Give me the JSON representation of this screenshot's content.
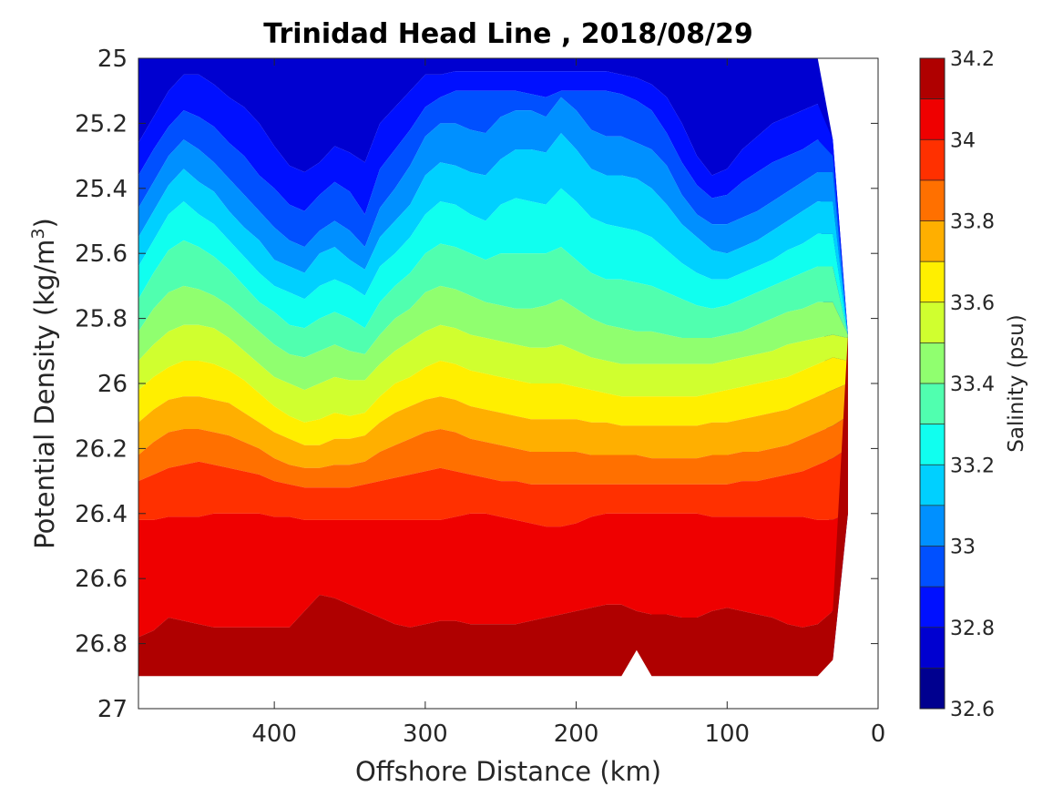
{
  "chart_data": {
    "type": "filled-contour",
    "title": "Trinidad Head Line , 2018/08/29",
    "xlabel": "Offshore Distance (km)",
    "ylabel": "Potential Density (kg/m",
    "ylabel_sup": "3",
    "ylabel_close": ")",
    "xlim": [
      490,
      0
    ],
    "ylim": [
      25,
      27
    ],
    "y_reversed": true,
    "xticks": [
      400,
      300,
      200,
      100,
      0
    ],
    "xtick_labels": [
      "400",
      "300",
      "200",
      "100",
      "0"
    ],
    "yticks": [
      25,
      25.2,
      25.4,
      25.6,
      25.8,
      26,
      26.2,
      26.4,
      26.6,
      26.8,
      27
    ],
    "ytick_labels": [
      "25",
      "25.2",
      "25.4",
      "25.6",
      "25.8",
      "26",
      "26.2",
      "26.4",
      "26.6",
      "26.8",
      "27"
    ],
    "colorbar": {
      "label": "Salinity (psu)",
      "range": [
        32.6,
        34.2
      ],
      "levels": [
        32.6,
        32.7,
        32.8,
        32.9,
        33.0,
        33.1,
        33.2,
        33.3,
        33.4,
        33.5,
        33.6,
        33.7,
        33.8,
        33.9,
        34.0,
        34.1,
        34.2
      ],
      "colors": [
        "#00008f",
        "#0000d0",
        "#0010ff",
        "#0050ff",
        "#0090ff",
        "#00d0ff",
        "#10ffef",
        "#50ffaf",
        "#90ff6f",
        "#d0ff2f",
        "#ffef00",
        "#ffaf00",
        "#ff7000",
        "#ff3000",
        "#ef0000",
        "#af0000"
      ],
      "ticks": [
        32.6,
        32.8,
        33.0,
        33.2,
        33.4,
        33.6,
        33.8,
        34.0,
        34.2
      ],
      "tick_labels": [
        "32.6",
        "32.8",
        "33",
        "33.2",
        "33.4",
        "33.6",
        "33.8",
        "34",
        "34.2"
      ]
    },
    "x": [
      490,
      480,
      470,
      460,
      450,
      440,
      430,
      420,
      410,
      400,
      390,
      380,
      370,
      360,
      350,
      340,
      330,
      320,
      310,
      300,
      290,
      280,
      270,
      260,
      250,
      240,
      230,
      220,
      210,
      200,
      190,
      180,
      170,
      160,
      150,
      140,
      130,
      120,
      110,
      100,
      90,
      80,
      70,
      60,
      50,
      40,
      30,
      20
    ],
    "boundaries": [
      {
        "level": 32.8,
        "depth": [
          25.26,
          25.18,
          25.1,
          25.05,
          25.05,
          25.08,
          25.12,
          25.15,
          25.2,
          25.27,
          25.33,
          25.35,
          25.32,
          25.27,
          25.29,
          25.32,
          25.2,
          25.15,
          25.1,
          25.05,
          25.05,
          25.04,
          25.04,
          25.04,
          25.04,
          25.04,
          25.04,
          25.04,
          25.04,
          25.04,
          25.04,
          25.04,
          25.05,
          25.06,
          25.08,
          25.12,
          25.2,
          25.3,
          25.36,
          25.34,
          25.28,
          25.24,
          25.2,
          25.18,
          25.16,
          25.14,
          null,
          null
        ]
      },
      {
        "level": 32.9,
        "depth": [
          25.36,
          25.28,
          25.21,
          25.16,
          25.18,
          25.21,
          25.26,
          25.3,
          25.36,
          25.4,
          25.45,
          25.47,
          25.42,
          25.38,
          25.41,
          25.48,
          25.34,
          25.28,
          25.22,
          25.15,
          25.12,
          25.1,
          25.1,
          25.1,
          25.1,
          25.1,
          25.11,
          25.12,
          25.1,
          25.1,
          25.1,
          25.1,
          25.11,
          25.13,
          25.16,
          25.23,
          25.32,
          25.39,
          25.43,
          25.42,
          25.38,
          25.35,
          25.32,
          25.3,
          25.28,
          25.25,
          25.3,
          null
        ]
      },
      {
        "level": 33.0,
        "depth": [
          25.46,
          25.38,
          25.3,
          25.25,
          25.28,
          25.32,
          25.37,
          25.42,
          25.47,
          25.52,
          25.56,
          25.58,
          25.53,
          25.5,
          25.53,
          25.58,
          25.46,
          25.4,
          25.33,
          25.24,
          25.2,
          25.2,
          25.22,
          25.23,
          25.18,
          25.16,
          25.16,
          25.18,
          25.12,
          25.16,
          25.22,
          25.24,
          25.24,
          25.26,
          25.28,
          25.33,
          25.42,
          25.48,
          25.51,
          25.51,
          25.49,
          25.47,
          25.44,
          25.41,
          25.38,
          25.35,
          25.35,
          25.4
        ]
      },
      {
        "level": 33.1,
        "depth": [
          25.55,
          25.47,
          25.39,
          25.34,
          25.38,
          25.41,
          25.47,
          25.52,
          25.56,
          25.62,
          25.64,
          25.66,
          25.6,
          25.58,
          25.62,
          25.65,
          25.55,
          25.5,
          25.45,
          25.36,
          25.32,
          25.33,
          25.35,
          25.36,
          25.31,
          25.28,
          25.28,
          25.29,
          25.23,
          25.28,
          25.34,
          25.36,
          25.36,
          25.37,
          25.4,
          25.45,
          25.51,
          25.55,
          25.59,
          25.6,
          25.58,
          25.56,
          25.53,
          25.5,
          25.47,
          25.44,
          25.44,
          25.48
        ]
      },
      {
        "level": 33.2,
        "depth": [
          25.64,
          25.56,
          25.48,
          25.44,
          25.48,
          25.51,
          25.56,
          25.61,
          25.66,
          25.7,
          25.72,
          25.74,
          25.7,
          25.68,
          25.7,
          25.73,
          25.64,
          25.6,
          25.55,
          25.48,
          25.44,
          25.45,
          25.48,
          25.5,
          25.45,
          25.43,
          25.44,
          25.45,
          25.4,
          25.44,
          25.49,
          25.51,
          25.52,
          25.53,
          25.55,
          25.59,
          25.63,
          25.66,
          25.68,
          25.68,
          25.66,
          25.64,
          25.62,
          25.59,
          25.57,
          25.54,
          25.54,
          25.58
        ]
      },
      {
        "level": 33.3,
        "depth": [
          25.74,
          25.66,
          25.59,
          25.56,
          25.58,
          25.61,
          25.65,
          25.7,
          25.75,
          25.78,
          25.82,
          25.83,
          25.8,
          25.78,
          25.8,
          25.83,
          25.75,
          25.7,
          25.66,
          25.6,
          25.57,
          25.58,
          25.6,
          25.62,
          25.6,
          25.6,
          25.6,
          25.6,
          25.58,
          25.62,
          25.66,
          25.68,
          25.68,
          25.69,
          25.7,
          25.72,
          25.74,
          25.76,
          25.77,
          25.76,
          25.74,
          25.72,
          25.7,
          25.68,
          25.66,
          25.64,
          25.64,
          25.68
        ]
      },
      {
        "level": 33.4,
        "depth": [
          25.84,
          25.77,
          25.72,
          25.7,
          25.71,
          25.73,
          25.76,
          25.8,
          25.84,
          25.88,
          25.91,
          25.92,
          25.9,
          25.88,
          25.9,
          25.91,
          25.85,
          25.8,
          25.77,
          25.72,
          25.7,
          25.71,
          25.73,
          25.75,
          25.76,
          25.77,
          25.77,
          25.76,
          25.74,
          25.77,
          25.8,
          25.82,
          25.83,
          25.84,
          25.84,
          25.85,
          25.86,
          25.86,
          25.86,
          25.85,
          25.84,
          25.82,
          25.8,
          25.78,
          25.77,
          25.75,
          25.75,
          25.78
        ]
      },
      {
        "level": 33.5,
        "depth": [
          25.93,
          25.88,
          25.84,
          25.82,
          25.82,
          25.83,
          25.86,
          25.9,
          25.94,
          25.98,
          26.0,
          26.02,
          26.0,
          25.98,
          25.99,
          25.99,
          25.94,
          25.9,
          25.87,
          25.84,
          25.82,
          25.83,
          25.85,
          25.86,
          25.87,
          25.88,
          25.89,
          25.89,
          25.88,
          25.9,
          25.92,
          25.93,
          25.94,
          25.94,
          25.94,
          25.94,
          25.94,
          25.94,
          25.94,
          25.93,
          25.92,
          25.91,
          25.9,
          25.88,
          25.87,
          25.86,
          25.85,
          25.86
        ]
      },
      {
        "level": 33.6,
        "depth": [
          26.02,
          25.98,
          25.95,
          25.93,
          25.93,
          25.94,
          25.96,
          25.99,
          26.03,
          26.07,
          26.1,
          26.12,
          26.11,
          26.09,
          26.1,
          26.09,
          26.04,
          26.0,
          25.98,
          25.95,
          25.93,
          25.94,
          25.96,
          25.97,
          25.98,
          25.99,
          26.0,
          26.0,
          26.0,
          26.01,
          26.02,
          26.03,
          26.04,
          26.04,
          26.04,
          26.04,
          26.04,
          26.04,
          26.03,
          26.02,
          26.01,
          26.0,
          25.99,
          25.98,
          25.96,
          25.94,
          25.92,
          25.93
        ]
      },
      {
        "level": 33.7,
        "depth": [
          26.12,
          26.08,
          26.05,
          26.04,
          26.04,
          26.05,
          26.06,
          26.09,
          26.12,
          26.15,
          26.17,
          26.19,
          26.19,
          26.17,
          26.17,
          26.16,
          26.12,
          26.09,
          26.07,
          26.05,
          26.04,
          26.05,
          26.07,
          26.08,
          26.09,
          26.1,
          26.11,
          26.11,
          26.11,
          26.11,
          26.12,
          26.12,
          26.13,
          26.13,
          26.13,
          26.13,
          26.13,
          26.13,
          26.12,
          26.12,
          26.11,
          26.1,
          26.09,
          26.08,
          26.06,
          26.04,
          26.02,
          26.0
        ]
      },
      {
        "level": 33.8,
        "depth": [
          26.22,
          26.18,
          26.15,
          26.14,
          26.14,
          26.15,
          26.16,
          26.18,
          26.2,
          26.23,
          26.25,
          26.26,
          26.26,
          26.25,
          26.25,
          26.24,
          26.21,
          26.19,
          26.17,
          26.15,
          26.14,
          26.15,
          26.17,
          26.18,
          26.19,
          26.2,
          26.21,
          26.21,
          26.21,
          26.21,
          26.22,
          26.22,
          26.22,
          26.22,
          26.23,
          26.23,
          26.23,
          26.23,
          26.22,
          26.22,
          26.21,
          26.21,
          26.2,
          26.19,
          26.17,
          26.15,
          26.13,
          26.1
        ]
      },
      {
        "level": 33.9,
        "depth": [
          26.3,
          26.28,
          26.26,
          26.25,
          26.24,
          26.25,
          26.26,
          26.27,
          26.28,
          26.3,
          26.31,
          26.32,
          26.32,
          26.32,
          26.32,
          26.31,
          26.3,
          26.29,
          26.28,
          26.27,
          26.26,
          26.27,
          26.28,
          26.29,
          26.3,
          26.3,
          26.31,
          26.31,
          26.31,
          26.31,
          26.31,
          26.31,
          26.31,
          26.31,
          26.31,
          26.31,
          26.31,
          26.31,
          26.31,
          26.31,
          26.3,
          26.3,
          26.29,
          26.28,
          26.27,
          26.25,
          26.23,
          26.2
        ]
      },
      {
        "level": 34.0,
        "depth": [
          26.42,
          26.42,
          26.41,
          26.41,
          26.41,
          26.4,
          26.4,
          26.4,
          26.4,
          26.41,
          26.41,
          26.42,
          26.42,
          26.42,
          26.42,
          26.42,
          26.42,
          26.42,
          26.42,
          26.42,
          26.42,
          26.41,
          26.4,
          26.4,
          26.41,
          26.42,
          26.43,
          26.44,
          26.44,
          26.43,
          26.41,
          26.4,
          26.4,
          26.4,
          26.4,
          26.4,
          26.4,
          26.4,
          26.41,
          26.41,
          26.41,
          26.41,
          26.41,
          26.41,
          26.41,
          26.42,
          26.42,
          26.42
        ]
      },
      {
        "level": 34.1,
        "depth": [
          26.78,
          26.76,
          26.72,
          26.73,
          26.74,
          26.75,
          26.75,
          26.75,
          26.75,
          26.75,
          26.75,
          26.7,
          26.65,
          26.66,
          26.68,
          26.7,
          26.72,
          26.74,
          26.75,
          26.74,
          26.73,
          26.73,
          26.74,
          26.74,
          26.74,
          26.74,
          26.73,
          26.72,
          26.71,
          26.7,
          26.69,
          26.68,
          26.68,
          26.7,
          26.71,
          26.71,
          26.72,
          26.72,
          26.7,
          26.69,
          26.7,
          26.71,
          26.72,
          26.74,
          26.75,
          26.74,
          26.7,
          null
        ]
      },
      {
        "level": 34.2,
        "depth": [
          null,
          null,
          null,
          null,
          null,
          null,
          null,
          null,
          null,
          null,
          null,
          null,
          26.89,
          26.88,
          26.89,
          null,
          null,
          null,
          null,
          null,
          null,
          null,
          null,
          null,
          null,
          null,
          null,
          null,
          null,
          null,
          null,
          null,
          null,
          null,
          null,
          null,
          null,
          null,
          null,
          null,
          null,
          null,
          null,
          null,
          null,
          null,
          null,
          null
        ]
      }
    ],
    "data_extent": {
      "bottom": [
        26.9,
        26.9,
        26.9,
        26.9,
        26.9,
        26.9,
        26.9,
        26.9,
        26.9,
        26.9,
        26.9,
        26.9,
        26.9,
        26.9,
        26.9,
        26.9,
        26.9,
        26.9,
        26.9,
        26.9,
        26.9,
        26.9,
        26.9,
        26.9,
        26.9,
        26.9,
        26.9,
        26.9,
        26.9,
        26.9,
        26.9,
        26.9,
        26.9,
        26.82,
        26.9,
        26.9,
        26.9,
        26.9,
        26.9,
        26.9,
        26.9,
        26.9,
        26.9,
        26.9,
        26.9,
        26.9,
        26.85,
        26.4
      ],
      "top": [
        25.0,
        25.0,
        25.0,
        25.0,
        25.0,
        25.0,
        25.0,
        25.0,
        25.0,
        25.0,
        25.0,
        25.0,
        25.0,
        25.0,
        25.0,
        25.0,
        25.0,
        25.0,
        25.0,
        25.0,
        25.0,
        25.0,
        25.0,
        25.0,
        25.0,
        25.0,
        25.0,
        25.0,
        25.0,
        25.0,
        25.0,
        25.0,
        25.0,
        25.0,
        25.0,
        25.0,
        25.0,
        25.0,
        25.0,
        25.0,
        25.0,
        25.0,
        25.0,
        25.0,
        25.0,
        25.0,
        25.25,
        25.85
      ]
    }
  }
}
